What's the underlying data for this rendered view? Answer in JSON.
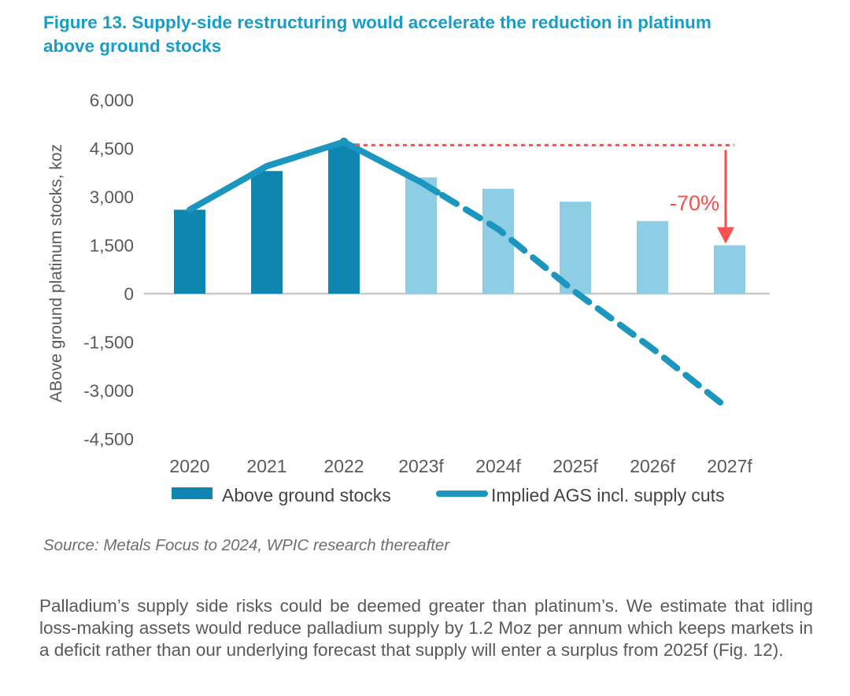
{
  "figure": {
    "title": "Figure 13. Supply-side restructuring would accelerate the reduction in platinum above ground stocks",
    "source": "Source: Metals Focus to 2024, WPIC research thereafter",
    "body_paragraph": "Palladium’s supply side risks could be deemed greater than platinum’s. We estimate that idling loss-making assets would reduce palladium supply by 1.2 Moz per annum which keeps markets in a deficit rather than our underlying forecast that supply will enter a surplus from 2025f (Fig. 12)."
  },
  "chart_data": {
    "type": "combo-bar-line",
    "categories": [
      "2020",
      "2021",
      "2022",
      "2023f",
      "2024f",
      "2025f",
      "2026f",
      "2027f"
    ],
    "series": [
      {
        "name": "Above ground stocks",
        "type": "bar",
        "values": [
          2600,
          3800,
          4650,
          3600,
          3250,
          2850,
          2250,
          1500
        ],
        "forecast_from_index": 3
      },
      {
        "name": "Implied AGS incl. supply cuts",
        "type": "line",
        "values": [
          2600,
          3950,
          4700,
          3450,
          2000,
          50,
          -1700,
          -3600
        ],
        "solid_through": "2023f",
        "dashed_from": "2024f"
      }
    ],
    "ylabel": "ABove ground platinum stocks, koz",
    "ylim": [
      -4500,
      6000
    ],
    "ytick_values": [
      6000,
      4500,
      3000,
      1500,
      0,
      -1500,
      -3000,
      -4500
    ],
    "ytick_labels": [
      "6,000",
      "4,500",
      "3,000",
      "1,500",
      "0",
      "-1,500",
      "-3,000",
      "-4,500"
    ],
    "grid": false,
    "legend_position": "bottom",
    "annotation": {
      "label": "-70%",
      "type": "drop-arrow",
      "from_value": 4600,
      "to_value": 1500,
      "from_category": "2022",
      "at_category": "2027f",
      "note": "red dashed reference line from 2022 peak across to 2027f, arrow down to 2027f bar top"
    }
  },
  "colors": {
    "title": "#189DC9",
    "bar_actual": "#0E86B0",
    "bar_forecast": "#8ECEE4",
    "line": "#1B96BF",
    "annotation_red": "#F8514D",
    "axis_text": "#595959",
    "legend_text": "#434343",
    "baseline": "#C9C9C9",
    "source_text": "#6E6E6E",
    "body_text": "#595959"
  }
}
